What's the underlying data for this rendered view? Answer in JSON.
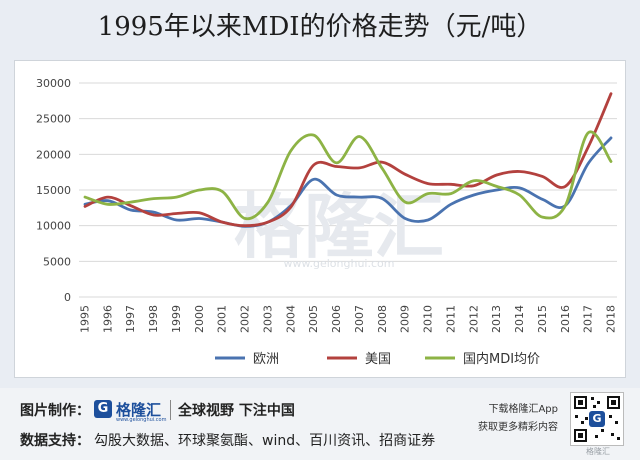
{
  "title": "1995年以来MDI的价格走势（元/吨）",
  "watermark": {
    "name": "格隆汇",
    "url": "www.gelonghui.com"
  },
  "chart_data": {
    "type": "line",
    "x": [
      "1995",
      "1996",
      "1997",
      "1998",
      "1999",
      "2000",
      "2001",
      "2002",
      "2003",
      "2004",
      "2005",
      "2006",
      "2007",
      "2008",
      "2009",
      "2010",
      "2011",
      "2012",
      "2013",
      "2014",
      "2015",
      "2016",
      "2017",
      "2018"
    ],
    "ylim": [
      0,
      30000
    ],
    "yticks": [
      0,
      5000,
      10000,
      15000,
      20000,
      25000,
      30000
    ],
    "grid": true,
    "legend_position": "bottom",
    "series": [
      {
        "name": "欧洲",
        "color": "#4a73b0",
        "values": [
          13000,
          13500,
          12200,
          11900,
          10800,
          11000,
          10500,
          9900,
          10500,
          12800,
          16500,
          14300,
          14000,
          13800,
          11000,
          10800,
          13000,
          14300,
          15000,
          15300,
          13700,
          12800,
          18700,
          22300
        ]
      },
      {
        "name": "美国",
        "color": "#b3413e",
        "values": [
          12700,
          14000,
          12800,
          11500,
          11700,
          11800,
          10500,
          10000,
          10500,
          12600,
          18500,
          18300,
          18100,
          18900,
          17200,
          15900,
          15800,
          15600,
          17100,
          17600,
          16900,
          15500,
          21000,
          28500
        ]
      },
      {
        "name": "国内MDI均价",
        "color": "#8db345",
        "values": [
          14000,
          13000,
          13300,
          13800,
          14000,
          15000,
          14800,
          11000,
          13300,
          20500,
          22700,
          18800,
          22500,
          18000,
          13300,
          14500,
          14500,
          16300,
          15500,
          14300,
          11200,
          12800,
          23000,
          19000
        ]
      }
    ]
  },
  "footer": {
    "made_label": "图片制作：",
    "logo_icon": "G",
    "logo_name": "格隆汇",
    "logo_sub": "www.gelonghui.com",
    "slogan": "全球视野 下注中国",
    "source_label": "数据支持：",
    "source_text": "勾股大数据、环球聚氨酯、wind、百川资讯、招商证券",
    "app_line1": "下载格隆汇App",
    "app_line2": "获取更多精彩内容",
    "qr_icon": "G",
    "corner_tag": "格隆汇"
  }
}
